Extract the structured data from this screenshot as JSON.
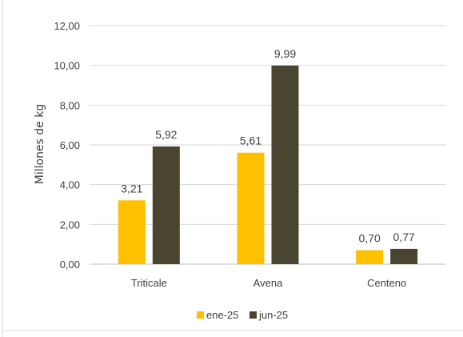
{
  "chart_data": {
    "type": "bar",
    "title": "",
    "xlabel": "",
    "ylabel": "Millones de kg",
    "ylim": [
      0,
      12
    ],
    "yticks": [
      "0,00",
      "2,00",
      "4,00",
      "6,00",
      "8,00",
      "10,00",
      "12,00"
    ],
    "categories": [
      "Triticale",
      "Avena",
      "Centeno"
    ],
    "series": [
      {
        "name": "ene-25",
        "color": "#FFC000",
        "values": [
          3.21,
          5.61,
          0.7
        ],
        "labels": [
          "3,21",
          "5,61",
          "0,70"
        ]
      },
      {
        "name": "jun-25",
        "color": "#4A4530",
        "values": [
          5.92,
          9.99,
          0.77
        ],
        "labels": [
          "5,92",
          "9,99",
          "0,77"
        ]
      }
    ],
    "grid": true,
    "legend": "bottom"
  }
}
